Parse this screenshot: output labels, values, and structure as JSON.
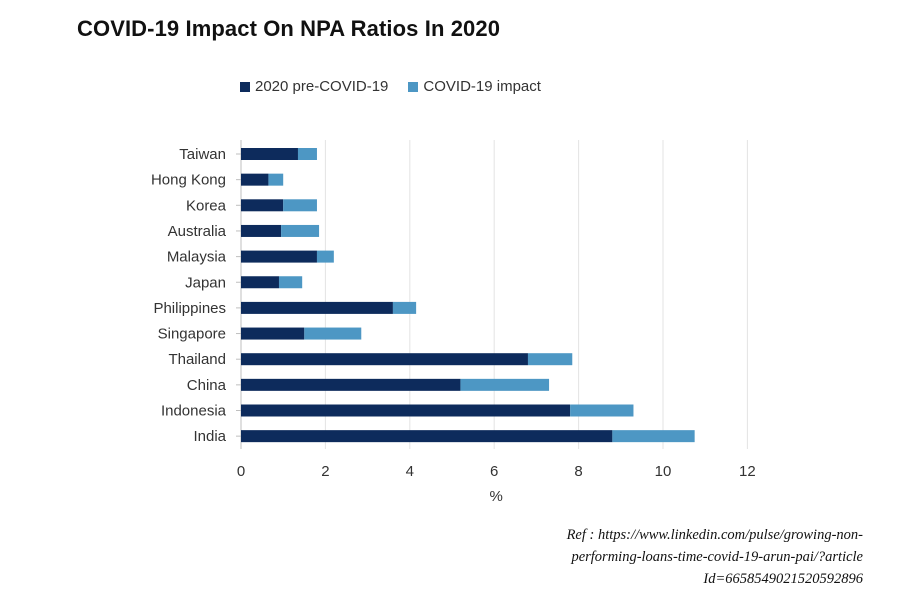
{
  "title": "COVID-19 Impact On NPA Ratios In 2020",
  "chart_data": {
    "type": "bar",
    "orientation": "horizontal",
    "stacked": true,
    "categories": [
      "Taiwan",
      "Hong Kong",
      "Korea",
      "Australia",
      "Malaysia",
      "Japan",
      "Philippines",
      "Singapore",
      "Thailand",
      "China",
      "Indonesia",
      "India"
    ],
    "series": [
      {
        "name": "2020 pre-COVID-19",
        "color": "#0d2b5c",
        "values": [
          1.35,
          0.65,
          1.0,
          0.95,
          1.8,
          0.9,
          3.6,
          1.5,
          6.8,
          5.2,
          7.8,
          8.8
        ]
      },
      {
        "name": "COVID-19 impact",
        "color": "#4d97c4",
        "values": [
          0.45,
          0.35,
          0.8,
          0.9,
          0.4,
          0.55,
          0.55,
          1.35,
          1.05,
          2.1,
          1.5,
          1.95
        ]
      }
    ],
    "xlabel": "%",
    "xlim": [
      0,
      12
    ],
    "xticks": [
      "0",
      "2",
      "4",
      "6",
      "8",
      "10",
      "12"
    ],
    "grid": "vertical",
    "legend_position": "top"
  },
  "reference": {
    "line1": "Ref : https://www.linkedin.com/pulse/growing-non-",
    "line2": "performing-loans-time-covid-19-arun-pai/?article",
    "line3": "Id=6658549021520592896"
  }
}
